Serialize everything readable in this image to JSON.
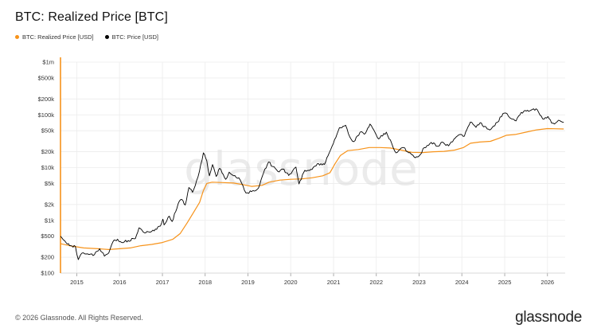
{
  "title": "BTC: Realized Price [BTC]",
  "footer": "© 2026 Glassnode. All Rights Reserved.",
  "brand": "glassnode",
  "watermark": "glassnode",
  "colors": {
    "realized": "#f7931a",
    "price": "#000000",
    "grid": "#ececec",
    "axis_text": "#333333"
  },
  "chart_data": {
    "type": "line",
    "title": "BTC: Realized Price [BTC]",
    "y_scale": "log",
    "ylim": [
      100,
      1000000
    ],
    "xlim": [
      "2014-08-15",
      "2026-06-01"
    ],
    "y_ticks": [
      {
        "value": 100,
        "label": "$100"
      },
      {
        "value": 200,
        "label": "$200"
      },
      {
        "value": 500,
        "label": "$500"
      },
      {
        "value": 1000,
        "label": "$1k"
      },
      {
        "value": 2000,
        "label": "$2k"
      },
      {
        "value": 5000,
        "label": "$5k"
      },
      {
        "value": 10000,
        "label": "$10k"
      },
      {
        "value": 20000,
        "label": "$20k"
      },
      {
        "value": 50000,
        "label": "$50k"
      },
      {
        "value": 100000,
        "label": "$100k"
      },
      {
        "value": 200000,
        "label": "$200k"
      },
      {
        "value": 500000,
        "label": "$500k"
      },
      {
        "value": 1000000,
        "label": "$1m"
      }
    ],
    "x_ticks": [
      "2015",
      "2016",
      "2017",
      "2018",
      "2019",
      "2020",
      "2021",
      "2022",
      "2023",
      "2024",
      "2025",
      "2026"
    ],
    "grid": true,
    "legend_position": "top-left",
    "series": [
      {
        "name": "BTC: Realized Price [USD]",
        "color": "#f7931a",
        "points": [
          [
            "2014-08-15",
            360
          ],
          [
            "2014-11-01",
            330
          ],
          [
            "2015-03-01",
            300
          ],
          [
            "2015-07-01",
            290
          ],
          [
            "2015-10-01",
            280
          ],
          [
            "2016-01-01",
            290
          ],
          [
            "2016-04-01",
            300
          ],
          [
            "2016-07-01",
            330
          ],
          [
            "2016-10-01",
            350
          ],
          [
            "2017-01-01",
            380
          ],
          [
            "2017-04-01",
            440
          ],
          [
            "2017-06-01",
            560
          ],
          [
            "2017-08-01",
            900
          ],
          [
            "2017-10-01",
            1500
          ],
          [
            "2017-11-15",
            2200
          ],
          [
            "2017-12-15",
            3600
          ],
          [
            "2018-01-15",
            5000
          ],
          [
            "2018-03-01",
            5300
          ],
          [
            "2018-06-01",
            5200
          ],
          [
            "2018-09-01",
            5100
          ],
          [
            "2018-12-01",
            4700
          ],
          [
            "2019-02-01",
            4400
          ],
          [
            "2019-05-01",
            4600
          ],
          [
            "2019-07-01",
            5300
          ],
          [
            "2019-10-01",
            5800
          ],
          [
            "2020-01-01",
            6000
          ],
          [
            "2020-04-01",
            6100
          ],
          [
            "2020-07-01",
            6400
          ],
          [
            "2020-10-01",
            7000
          ],
          [
            "2020-12-01",
            8000
          ],
          [
            "2021-01-15",
            12000
          ],
          [
            "2021-03-01",
            17000
          ],
          [
            "2021-05-01",
            21000
          ],
          [
            "2021-08-01",
            22000
          ],
          [
            "2021-11-01",
            24000
          ],
          [
            "2022-02-01",
            24000
          ],
          [
            "2022-05-01",
            23500
          ],
          [
            "2022-08-01",
            21500
          ],
          [
            "2022-11-01",
            19500
          ],
          [
            "2023-02-01",
            19300
          ],
          [
            "2023-05-01",
            20000
          ],
          [
            "2023-08-01",
            20300
          ],
          [
            "2023-11-01",
            21500
          ],
          [
            "2024-01-15",
            24000
          ],
          [
            "2024-03-15",
            29000
          ],
          [
            "2024-06-01",
            30500
          ],
          [
            "2024-09-01",
            31500
          ],
          [
            "2024-11-15",
            36000
          ],
          [
            "2025-01-15",
            41000
          ],
          [
            "2025-04-01",
            42500
          ],
          [
            "2025-07-01",
            47000
          ],
          [
            "2025-10-01",
            52000
          ],
          [
            "2026-01-01",
            55000
          ],
          [
            "2026-03-01",
            54500
          ],
          [
            "2026-05-20",
            54000
          ]
        ]
      },
      {
        "name": "BTC: Price [USD]",
        "color": "#000000",
        "points": [
          [
            "2014-08-15",
            500
          ],
          [
            "2014-09-20",
            410
          ],
          [
            "2014-11-01",
            330
          ],
          [
            "2014-12-20",
            320
          ],
          [
            "2015-01-14",
            180
          ],
          [
            "2015-02-15",
            240
          ],
          [
            "2015-04-15",
            225
          ],
          [
            "2015-06-01",
            225
          ],
          [
            "2015-07-15",
            290
          ],
          [
            "2015-08-25",
            210
          ],
          [
            "2015-10-01",
            240
          ],
          [
            "2015-11-05",
            390
          ],
          [
            "2015-12-15",
            440
          ],
          [
            "2016-01-20",
            380
          ],
          [
            "2016-03-15",
            415
          ],
          [
            "2016-05-15",
            450
          ],
          [
            "2016-06-15",
            720
          ],
          [
            "2016-08-01",
            580
          ],
          [
            "2016-10-01",
            615
          ],
          [
            "2016-12-15",
            780
          ],
          [
            "2017-01-05",
            1050
          ],
          [
            "2017-01-15",
            820
          ],
          [
            "2017-03-01",
            1200
          ],
          [
            "2017-03-25",
            950
          ],
          [
            "2017-05-25",
            2300
          ],
          [
            "2017-06-15",
            2500
          ],
          [
            "2017-07-15",
            1950
          ],
          [
            "2017-08-15",
            4200
          ],
          [
            "2017-09-15",
            3400
          ],
          [
            "2017-11-01",
            6700
          ],
          [
            "2017-12-17",
            19000
          ],
          [
            "2018-01-15",
            13500
          ],
          [
            "2018-02-06",
            7000
          ],
          [
            "2018-03-05",
            11400
          ],
          [
            "2018-04-05",
            6800
          ],
          [
            "2018-05-05",
            9700
          ],
          [
            "2018-06-25",
            6000
          ],
          [
            "2018-07-25",
            8200
          ],
          [
            "2018-09-01",
            7000
          ],
          [
            "2018-10-15",
            6400
          ],
          [
            "2018-11-20",
            4500
          ],
          [
            "2018-12-15",
            3300
          ],
          [
            "2019-02-01",
            3500
          ],
          [
            "2019-04-01",
            4100
          ],
          [
            "2019-05-15",
            8000
          ],
          [
            "2019-06-26",
            12800
          ],
          [
            "2019-08-01",
            10500
          ],
          [
            "2019-09-25",
            8300
          ],
          [
            "2019-10-26",
            9400
          ],
          [
            "2019-12-15",
            7100
          ],
          [
            "2020-02-15",
            10200
          ],
          [
            "2020-03-12",
            4900
          ],
          [
            "2020-05-01",
            8900
          ],
          [
            "2020-07-01",
            9200
          ],
          [
            "2020-08-15",
            11800
          ],
          [
            "2020-10-15",
            11500
          ],
          [
            "2020-11-25",
            19000
          ],
          [
            "2020-12-31",
            29000
          ],
          [
            "2021-02-20",
            57000
          ],
          [
            "2021-04-14",
            63500
          ],
          [
            "2021-05-20",
            38000
          ],
          [
            "2021-06-22",
            31000
          ],
          [
            "2021-08-15",
            47000
          ],
          [
            "2021-09-20",
            43000
          ],
          [
            "2021-11-08",
            67000
          ],
          [
            "2022-01-22",
            35000
          ],
          [
            "2022-03-28",
            47000
          ],
          [
            "2022-05-12",
            29000
          ],
          [
            "2022-06-18",
            19000
          ],
          [
            "2022-08-12",
            24000
          ],
          [
            "2022-10-15",
            19200
          ],
          [
            "2022-11-21",
            15800
          ],
          [
            "2022-12-31",
            16500
          ],
          [
            "2023-02-15",
            24000
          ],
          [
            "2023-04-15",
            30000
          ],
          [
            "2023-06-15",
            25500
          ],
          [
            "2023-07-15",
            30500
          ],
          [
            "2023-09-10",
            25800
          ],
          [
            "2023-10-25",
            34500
          ],
          [
            "2023-12-15",
            42500
          ],
          [
            "2024-01-23",
            39500
          ],
          [
            "2024-03-14",
            73000
          ],
          [
            "2024-05-01",
            58000
          ],
          [
            "2024-06-05",
            71000
          ],
          [
            "2024-08-05",
            54000
          ],
          [
            "2024-09-06",
            53500
          ],
          [
            "2024-10-30",
            72000
          ],
          [
            "2024-12-17",
            106000
          ],
          [
            "2025-01-21",
            105000
          ],
          [
            "2025-02-28",
            84000
          ],
          [
            "2025-04-08",
            77000
          ],
          [
            "2025-05-22",
            111000
          ],
          [
            "2025-07-14",
            122000
          ],
          [
            "2025-08-14",
            123000
          ],
          [
            "2025-10-06",
            125000
          ],
          [
            "2025-11-21",
            84000
          ],
          [
            "2026-01-05",
            93000
          ],
          [
            "2026-02-05",
            70000
          ],
          [
            "2026-03-15",
            71000
          ],
          [
            "2026-04-15",
            78000
          ],
          [
            "2026-05-20",
            72000
          ]
        ]
      }
    ]
  }
}
